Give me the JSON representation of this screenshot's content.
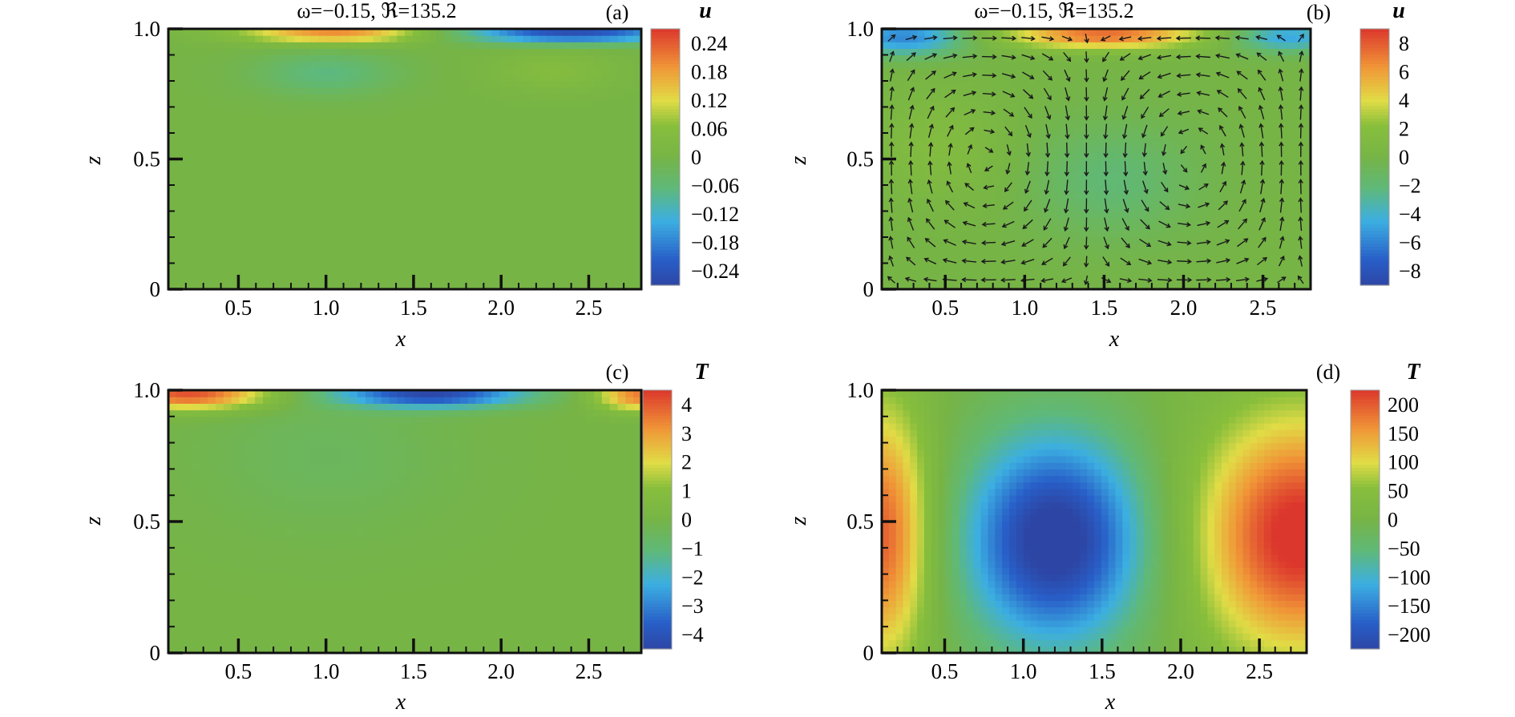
{
  "chart_data": [
    {
      "id": "a",
      "type": "heatmap",
      "tag": "(a)",
      "title": "ω=−0.15, ℜ=135.2",
      "xlabel": "x",
      "ylabel": "z",
      "xlim": [
        0.1,
        2.8
      ],
      "ylim": [
        0,
        1
      ],
      "x_ticks": [
        "0.5",
        "1.0",
        "1.5",
        "2.0",
        "2.5"
      ],
      "y_ticks": [
        "0",
        "0.5",
        "1.0"
      ],
      "colorbar": {
        "title": "u",
        "labels": [
          "0.24",
          "0.18",
          "0.12",
          "0.06",
          "0",
          "−0.06",
          "−0.12",
          "−0.18",
          "−0.24"
        ],
        "range": [
          -0.27,
          0.27
        ]
      },
      "features": [
        {
          "kind": "blob",
          "x": 1.05,
          "z": 0.985,
          "sx": 0.38,
          "sz": 0.028,
          "value": 0.2
        },
        {
          "kind": "blob",
          "x": 2.4,
          "z": 0.985,
          "sx": 0.45,
          "sz": 0.028,
          "value": -0.25
        },
        {
          "kind": "blob",
          "x": 1.0,
          "z": 0.83,
          "sx": 0.28,
          "sz": 0.06,
          "value": -0.07
        },
        {
          "kind": "blob",
          "x": 2.3,
          "z": 0.84,
          "sx": 0.25,
          "sz": 0.06,
          "value": 0.05
        }
      ],
      "vectors": false
    },
    {
      "id": "b",
      "type": "heatmap",
      "tag": "(b)",
      "title": "ω=−0.15, ℜ=135.2",
      "xlabel": "x",
      "ylabel": "z",
      "xlim": [
        0.1,
        2.8
      ],
      "ylim": [
        0,
        1
      ],
      "x_ticks": [
        "0.5",
        "1.0",
        "1.5",
        "2.0",
        "2.5"
      ],
      "y_ticks": [
        "0",
        "0.5",
        "1.0"
      ],
      "colorbar": {
        "title": "u",
        "labels": [
          "8",
          "6",
          "4",
          "2",
          "0",
          "−2",
          "−4",
          "−6",
          "−8"
        ],
        "range": [
          -9,
          9
        ]
      },
      "features": [
        {
          "kind": "blob",
          "x": 0.25,
          "z": 0.97,
          "sx": 0.28,
          "sz": 0.05,
          "value": -6
        },
        {
          "kind": "blob",
          "x": 1.5,
          "z": 0.98,
          "sx": 0.45,
          "sz": 0.04,
          "value": 7.5
        },
        {
          "kind": "blob",
          "x": 2.65,
          "z": 0.97,
          "sx": 0.25,
          "sz": 0.04,
          "value": -5
        },
        {
          "kind": "blob",
          "x": 1.55,
          "z": 0.42,
          "sx": 0.35,
          "sz": 0.15,
          "value": -2
        },
        {
          "kind": "blob",
          "x": 0.45,
          "z": 0.55,
          "sx": 0.3,
          "sz": 0.15,
          "value": 1.5
        }
      ],
      "vectors": true
    },
    {
      "id": "c",
      "type": "heatmap",
      "tag": "(c)",
      "title": "",
      "xlabel": "x",
      "ylabel": "z",
      "xlim": [
        0.1,
        2.8
      ],
      "ylim": [
        0,
        1
      ],
      "x_ticks": [
        "0.5",
        "1.0",
        "1.5",
        "2.0",
        "2.5"
      ],
      "y_ticks": [
        "0",
        "0.5",
        "1.0"
      ],
      "colorbar": {
        "title": "T",
        "labels": [
          "4",
          "3",
          "2",
          "1",
          "0",
          "−1",
          "−2",
          "−3",
          "−4"
        ],
        "range": [
          -4.5,
          4.5
        ]
      },
      "features": [
        {
          "kind": "blob",
          "x": 0.22,
          "z": 0.985,
          "sx": 0.32,
          "sz": 0.04,
          "value": 4.2
        },
        {
          "kind": "blob",
          "x": 1.6,
          "z": 0.985,
          "sx": 0.38,
          "sz": 0.035,
          "value": -4.3
        },
        {
          "kind": "blob",
          "x": 2.8,
          "z": 0.98,
          "sx": 0.18,
          "sz": 0.04,
          "value": 3.6
        },
        {
          "kind": "blob",
          "x": 1.0,
          "z": 0.75,
          "sx": 0.5,
          "sz": 0.2,
          "value": -0.5
        }
      ],
      "vectors": false
    },
    {
      "id": "d",
      "type": "heatmap",
      "tag": "(d)",
      "title": "",
      "xlabel": "x",
      "ylabel": "z",
      "xlim": [
        0.1,
        2.8
      ],
      "ylim": [
        0,
        1
      ],
      "x_ticks": [
        "0.5",
        "1.0",
        "1.5",
        "2.0",
        "2.5"
      ],
      "y_ticks": [
        "0",
        "0.5",
        "1.0"
      ],
      "colorbar": {
        "title": "T",
        "labels": [
          "200",
          "150",
          "100",
          "50",
          "0",
          "−50",
          "−100",
          "−150",
          "−200"
        ],
        "range": [
          -225,
          225
        ]
      },
      "features": [
        {
          "kind": "blob",
          "x": 0.1,
          "z": 0.45,
          "sx": 0.22,
          "sz": 0.35,
          "value": 200
        },
        {
          "kind": "blob",
          "x": 1.2,
          "z": 0.43,
          "sx": 0.4,
          "sz": 0.28,
          "value": -250
        },
        {
          "kind": "blob",
          "x": 2.75,
          "z": 0.45,
          "sx": 0.45,
          "sz": 0.32,
          "value": 240
        }
      ],
      "vectors": false
    }
  ]
}
